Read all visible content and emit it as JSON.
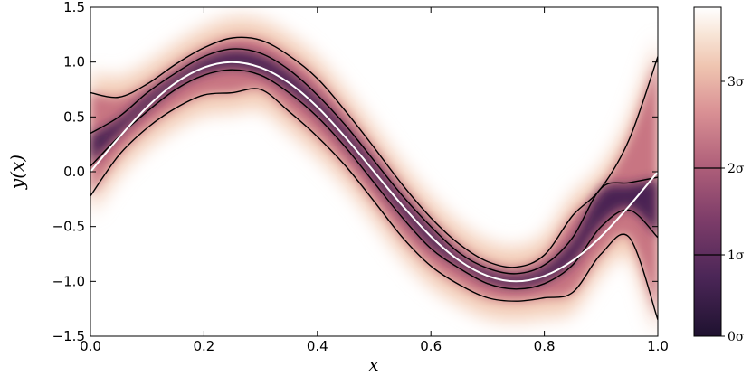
{
  "chart_data": {
    "type": "heatmap",
    "description_type": "density",
    "xlabel": "x",
    "ylabel": "y(x)",
    "xlim": [
      0.0,
      1.0
    ],
    "ylim": [
      -1.5,
      1.5
    ],
    "xticks": [
      "0.0",
      "0.2",
      "0.4",
      "0.6",
      "0.8",
      "1.0"
    ],
    "yticks": [
      "1.5",
      "1.0",
      "0.5",
      "0.0",
      "−0.5",
      "−1.0",
      "−1.5"
    ],
    "true_function": {
      "name": "",
      "color": "#ffffff",
      "x": [
        0.0,
        0.05,
        0.1,
        0.15,
        0.2,
        0.25,
        0.3,
        0.35,
        0.4,
        0.45,
        0.5,
        0.55,
        0.6,
        0.65,
        0.7,
        0.75,
        0.8,
        0.85,
        0.9,
        0.95,
        1.0
      ],
      "y": [
        0.0,
        0.31,
        0.59,
        0.81,
        0.95,
        1.0,
        0.95,
        0.81,
        0.59,
        0.31,
        0.0,
        -0.31,
        -0.59,
        -0.81,
        -0.95,
        -1.0,
        -0.95,
        -0.81,
        -0.59,
        -0.31,
        0.0
      ]
    },
    "contours": {
      "color": "#000000",
      "x": [
        0.0,
        0.05,
        0.1,
        0.15,
        0.2,
        0.25,
        0.3,
        0.35,
        0.4,
        0.45,
        0.5,
        0.55,
        0.6,
        0.65,
        0.7,
        0.75,
        0.8,
        0.85,
        0.9,
        0.95,
        1.0
      ],
      "upper_2sigma": [
        0.72,
        0.68,
        0.8,
        0.98,
        1.13,
        1.22,
        1.2,
        1.06,
        0.85,
        0.55,
        0.22,
        -0.12,
        -0.42,
        -0.66,
        -0.82,
        -0.87,
        -0.76,
        -0.4,
        -0.15,
        0.3,
        1.05
      ],
      "upper_1sigma": [
        0.35,
        0.5,
        0.72,
        0.9,
        1.05,
        1.12,
        1.08,
        0.93,
        0.7,
        0.42,
        0.1,
        -0.22,
        -0.5,
        -0.74,
        -0.88,
        -0.93,
        -0.85,
        -0.6,
        -0.15,
        -0.1,
        -0.05
      ],
      "lower_1sigma": [
        0.05,
        0.32,
        0.55,
        0.75,
        0.88,
        0.93,
        0.88,
        0.72,
        0.5,
        0.22,
        -0.1,
        -0.42,
        -0.7,
        -0.88,
        -1.02,
        -1.07,
        -1.02,
        -0.85,
        -0.5,
        -0.35,
        -0.6
      ],
      "lower_2sigma": [
        -0.22,
        0.15,
        0.4,
        0.58,
        0.7,
        0.72,
        0.75,
        0.55,
        0.32,
        0.05,
        -0.27,
        -0.6,
        -0.86,
        -1.03,
        -1.15,
        -1.18,
        -1.15,
        -1.1,
        -0.75,
        -0.6,
        -1.35
      ]
    },
    "colorbar": {
      "colormap": "magma-like (dark purple low, white high)",
      "ticks": [
        "3σ",
        "2σ",
        "1σ",
        "0σ"
      ]
    }
  }
}
